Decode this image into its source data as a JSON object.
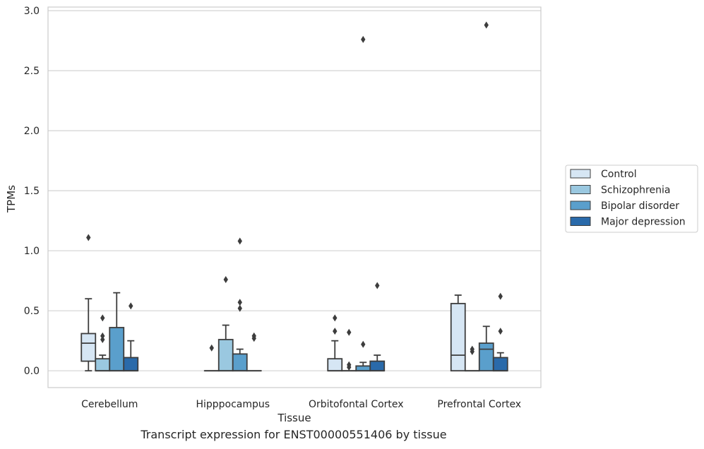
{
  "chart_data": {
    "type": "box",
    "caption": "Transcript expression for ENST00000551406 by tissue",
    "xlabel": "Tissue",
    "ylabel": "TPMs",
    "ylim": [
      -0.14,
      3.03
    ],
    "yticks": [
      "0.0",
      "0.5",
      "1.0",
      "1.5",
      "2.0",
      "2.5",
      "3.0"
    ],
    "ytick_values": [
      0,
      0.5,
      1.0,
      1.5,
      2.0,
      2.5,
      3.0
    ],
    "grid": "horizontal",
    "legend_position": "right",
    "categories": [
      "Cerebellum",
      "Hipppocampus",
      "Orbitofontal Cortex",
      "Prefrontal Cortex"
    ],
    "series": [
      {
        "name": "Control",
        "color": "#d6e6f4",
        "boxes": [
          {
            "q1": 0.08,
            "median": 0.23,
            "q3": 0.31,
            "whisker_low": 0.0,
            "whisker_high": 0.6,
            "outliers": [
              1.11
            ]
          },
          {
            "q1": 0.0,
            "median": 0.0,
            "q3": 0.0,
            "whisker_low": 0.0,
            "whisker_high": 0.0,
            "outliers": [
              0.19
            ]
          },
          {
            "q1": 0.0,
            "median": 0.0,
            "q3": 0.1,
            "whisker_low": 0.0,
            "whisker_high": 0.25,
            "outliers": [
              0.33,
              0.44
            ]
          },
          {
            "q1": 0.0,
            "median": 0.13,
            "q3": 0.56,
            "whisker_low": 0.0,
            "whisker_high": 0.63,
            "outliers": []
          }
        ]
      },
      {
        "name": "Schizophrenia",
        "color": "#9ac8e0",
        "boxes": [
          {
            "q1": 0.0,
            "median": 0.0,
            "q3": 0.1,
            "whisker_low": 0.0,
            "whisker_high": 0.13,
            "outliers": [
              0.26,
              0.29,
              0.44
            ]
          },
          {
            "q1": 0.0,
            "median": 0.0,
            "q3": 0.26,
            "whisker_low": 0.0,
            "whisker_high": 0.38,
            "outliers": [
              0.76
            ]
          },
          {
            "q1": 0.0,
            "median": 0.0,
            "q3": 0.0,
            "whisker_low": 0.0,
            "whisker_high": 0.0,
            "outliers": [
              0.03,
              0.05,
              0.32
            ]
          },
          {
            "q1": 0.0,
            "median": 0.0,
            "q3": 0.0,
            "whisker_low": 0.0,
            "whisker_high": 0.0,
            "outliers": [
              0.16,
              0.18
            ]
          }
        ]
      },
      {
        "name": "Bipolar disorder",
        "color": "#5a9fcc",
        "boxes": [
          {
            "q1": 0.0,
            "median": 0.0,
            "q3": 0.36,
            "whisker_low": 0.0,
            "whisker_high": 0.65,
            "outliers": []
          },
          {
            "q1": 0.0,
            "median": 0.0,
            "q3": 0.14,
            "whisker_low": 0.0,
            "whisker_high": 0.18,
            "outliers": [
              0.52,
              0.57,
              1.08
            ]
          },
          {
            "q1": 0.0,
            "median": 0.0,
            "q3": 0.04,
            "whisker_low": 0.0,
            "whisker_high": 0.07,
            "outliers": [
              0.22,
              2.76
            ]
          },
          {
            "q1": 0.0,
            "median": 0.18,
            "q3": 0.23,
            "whisker_low": 0.0,
            "whisker_high": 0.37,
            "outliers": [
              2.88
            ]
          }
        ]
      },
      {
        "name": "Major depression",
        "color": "#2a6aaa",
        "boxes": [
          {
            "q1": 0.0,
            "median": 0.0,
            "q3": 0.11,
            "whisker_low": 0.0,
            "whisker_high": 0.25,
            "outliers": [
              0.54
            ]
          },
          {
            "q1": 0.0,
            "median": 0.0,
            "q3": 0.0,
            "whisker_low": 0.0,
            "whisker_high": 0.0,
            "outliers": [
              0.27,
              0.29
            ]
          },
          {
            "q1": 0.0,
            "median": 0.0,
            "q3": 0.08,
            "whisker_low": 0.0,
            "whisker_high": 0.13,
            "outliers": [
              0.71
            ]
          },
          {
            "q1": 0.0,
            "median": 0.0,
            "q3": 0.11,
            "whisker_low": 0.0,
            "whisker_high": 0.15,
            "outliers": [
              0.33,
              0.62
            ]
          }
        ]
      }
    ]
  }
}
